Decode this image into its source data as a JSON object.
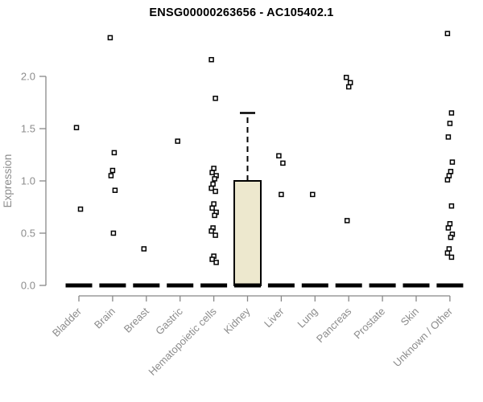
{
  "title": "ENSG00000263656 - AC105402.1",
  "chart_data": {
    "type": "boxplot",
    "title": "ENSG00000263656 - AC105402.1",
    "ylabel": "Expression",
    "xlabel": "",
    "ylim": [
      0,
      2.45
    ],
    "yticks": [
      0.0,
      0.5,
      1.0,
      1.5,
      2.0
    ],
    "grid": false,
    "legend": "none",
    "colors": {
      "box_fill": "#ede8ce",
      "box_stroke": "#000000",
      "median": "#000000",
      "axis": "#888888",
      "tick_label": "#8c8c8c",
      "outlier_stroke": "#000000",
      "outlier_fill": "#ffffff"
    },
    "categories": [
      {
        "label": "Bladder",
        "box": {
          "q1": 0,
          "median": 0,
          "q3": 0,
          "whisker_low": 0,
          "whisker_high": 0
        },
        "outliers": [
          1.51,
          0.73
        ]
      },
      {
        "label": "Brain",
        "box": {
          "q1": 0,
          "median": 0,
          "q3": 0,
          "whisker_low": 0,
          "whisker_high": 0
        },
        "outliers": [
          2.37,
          1.27,
          1.1,
          1.05,
          0.91,
          0.5
        ]
      },
      {
        "label": "Breast",
        "box": {
          "q1": 0,
          "median": 0,
          "q3": 0,
          "whisker_low": 0,
          "whisker_high": 0
        },
        "outliers": [
          0.35
        ]
      },
      {
        "label": "Gastric",
        "box": {
          "q1": 0,
          "median": 0,
          "q3": 0,
          "whisker_low": 0,
          "whisker_high": 0
        },
        "outliers": [
          1.38
        ]
      },
      {
        "label": "Hematopoietic cells",
        "box": {
          "q1": 0,
          "median": 0,
          "q3": 0,
          "whisker_low": 0,
          "whisker_high": 0
        },
        "outliers": [
          2.16,
          1.79,
          1.12,
          1.08,
          1.05,
          1.02,
          0.97,
          0.93,
          0.9,
          0.78,
          0.74,
          0.7,
          0.67,
          0.55,
          0.52,
          0.48,
          0.28,
          0.25,
          0.22
        ]
      },
      {
        "label": "Kidney",
        "box": {
          "q1": 0,
          "median": 0,
          "q3": 1.0,
          "whisker_low": 0,
          "whisker_high": 1.65
        },
        "outliers": []
      },
      {
        "label": "Liver",
        "box": {
          "q1": 0,
          "median": 0,
          "q3": 0,
          "whisker_low": 0,
          "whisker_high": 0
        },
        "outliers": [
          1.24,
          1.17,
          0.87
        ]
      },
      {
        "label": "Lung",
        "box": {
          "q1": 0,
          "median": 0,
          "q3": 0,
          "whisker_low": 0,
          "whisker_high": 0
        },
        "outliers": [
          0.87
        ]
      },
      {
        "label": "Pancreas",
        "box": {
          "q1": 0,
          "median": 0,
          "q3": 0,
          "whisker_low": 0,
          "whisker_high": 0
        },
        "outliers": [
          1.99,
          1.94,
          1.9,
          0.62
        ]
      },
      {
        "label": "Prostate",
        "box": {
          "q1": 0,
          "median": 0,
          "q3": 0,
          "whisker_low": 0,
          "whisker_high": 0
        },
        "outliers": []
      },
      {
        "label": "Skin",
        "box": {
          "q1": 0,
          "median": 0,
          "q3": 0,
          "whisker_low": 0,
          "whisker_high": 0
        },
        "outliers": []
      },
      {
        "label": "Unknown / Other",
        "box": {
          "q1": 0,
          "median": 0,
          "q3": 0,
          "whisker_low": 0,
          "whisker_high": 0
        },
        "outliers": [
          2.41,
          1.65,
          1.55,
          1.42,
          1.18,
          1.09,
          1.05,
          1.01,
          0.76,
          0.59,
          0.55,
          0.49,
          0.46,
          0.35,
          0.31,
          0.27
        ]
      }
    ]
  }
}
